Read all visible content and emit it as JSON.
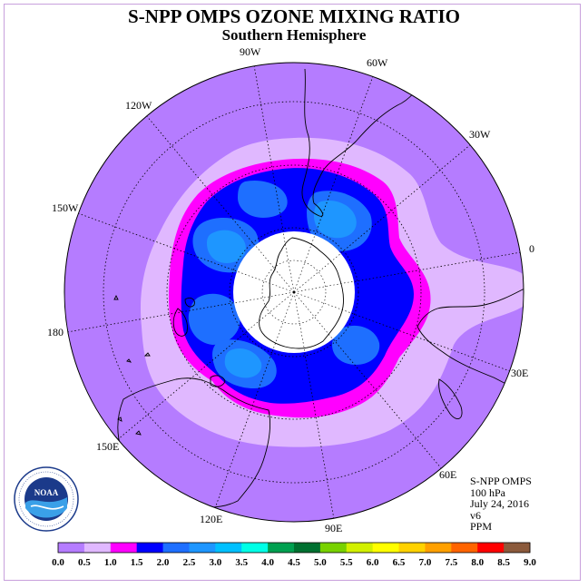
{
  "title": "S-NPP OMPS OZONE MIXING RATIO",
  "subtitle": "Southern Hemisphere",
  "longitude_labels": [
    "90W",
    "60W",
    "30W",
    "0",
    "30E",
    "60E",
    "90E",
    "120E",
    "150E",
    "180",
    "150W",
    "120W"
  ],
  "info": {
    "product": "S-NPP OMPS",
    "level": "100 hPa",
    "date": "July 24, 2016",
    "version": "v6",
    "units": "PPM"
  },
  "colorbar": {
    "tick_labels": [
      "0.0",
      "0.5",
      "1.0",
      "1.5",
      "2.0",
      "2.5",
      "3.0",
      "3.5",
      "4.0",
      "4.5",
      "5.0",
      "5.5",
      "6.0",
      "6.5",
      "7.0",
      "7.5",
      "8.0",
      "8.5",
      "9.0"
    ],
    "colors": [
      "#b57cff",
      "#e0b8ff",
      "#ff00ff",
      "#0000ff",
      "#1e6fff",
      "#1e96ff",
      "#00c0ff",
      "#00ffe6",
      "#00a050",
      "#007030",
      "#78d200",
      "#d2f000",
      "#ffff00",
      "#ffd200",
      "#ffa000",
      "#ff6400",
      "#ff0000",
      "#8b5a3c"
    ]
  },
  "logo": {
    "text": "NOAA",
    "ring_text": "NATIONAL OCEANIC AND ATMOSPHERIC ADMINISTRATION · U.S. DEPARTMENT OF COMMERCE"
  }
}
